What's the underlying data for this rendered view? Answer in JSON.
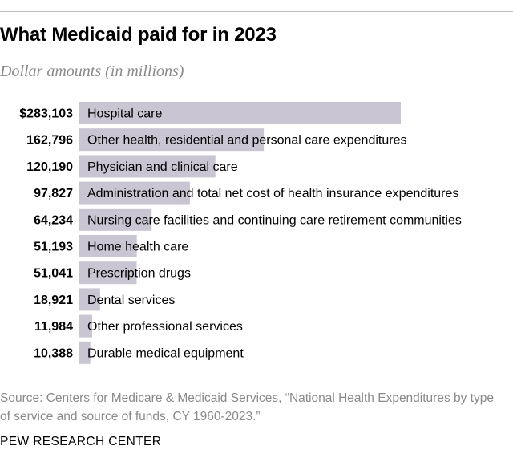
{
  "chart_data": {
    "type": "bar",
    "orientation": "horizontal",
    "title": "What Medicaid paid for in 2023",
    "subtitle": "Dollar amounts (in millions)",
    "categories": [
      "Hospital care",
      "Other health, residential and personal care expenditures",
      "Physician and clinical care",
      "Administration and total net cost of health insurance expenditures",
      "Nursing care facilities and continuing care retirement communities",
      "Home health care",
      "Prescription drugs",
      "Dental services",
      "Other professional services",
      "Durable medical equipment"
    ],
    "values": [
      283103,
      162796,
      120190,
      97827,
      64234,
      51193,
      51041,
      18921,
      11984,
      10388
    ],
    "value_labels": [
      "$283,103",
      "162,796",
      "120,190",
      "97,827",
      "64,234",
      "51,193",
      "51,041",
      "18,921",
      "11,984",
      "10,388"
    ],
    "xlim": [
      0,
      283103
    ],
    "bar_color": "#c9c5d2",
    "grid": false,
    "legend": "none"
  },
  "source": "Source: Centers for Medicare & Medicaid Services, “National Health Expenditures by type of service and source of funds, CY 1960-2023.”",
  "brand": "PEW RESEARCH CENTER"
}
